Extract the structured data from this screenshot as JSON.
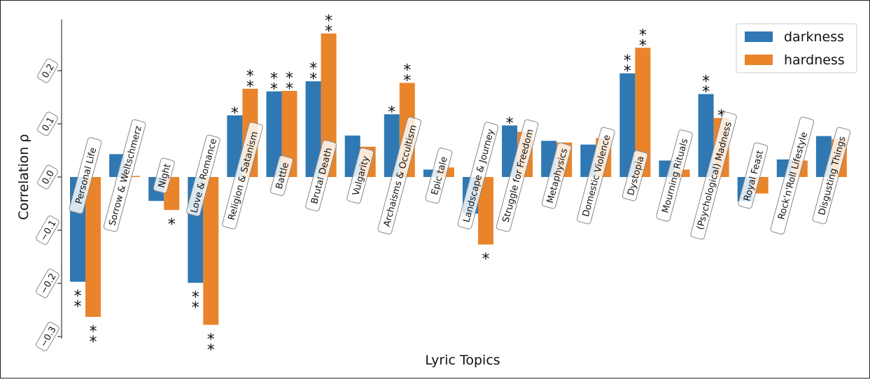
{
  "chart_data": {
    "type": "bar",
    "xlabel": "Lyric Topics",
    "ylabel": "Correlation ρ",
    "ylim": [
      -0.31,
      0.31
    ],
    "yticks": [
      0.2,
      0.1,
      0.0,
      -0.1,
      -0.2,
      -0.3
    ],
    "ytick_labels": [
      "0.2",
      "0.1",
      "0.0",
      "−0.1",
      "−0.2",
      "−0.3"
    ],
    "grid": false,
    "legend_position": "top-right",
    "categories": [
      "Personal Life",
      "Sorrow & Weltschmerz",
      "Night",
      "Love & Romance",
      "Religion & Satanism",
      "Battle",
      "Brutal Death",
      "Vulgarity",
      "Archaisms & Occultism",
      "Epic tale",
      "Landscape & Journey",
      "Struggle for Freedom",
      "Metaphysics",
      "Domestic Violence",
      "Dystopia",
      "Mourning Rituals",
      "(Psychological) Madness",
      "Royal Feast",
      "Rock'n'Roll Lifestyle",
      "Disgusting Things"
    ],
    "series": [
      {
        "name": "darkness",
        "color": "#2f78b3",
        "values": [
          -0.197,
          0.043,
          -0.045,
          -0.199,
          0.116,
          0.161,
          0.18,
          0.078,
          0.118,
          0.014,
          -0.069,
          0.097,
          0.068,
          0.061,
          0.195,
          0.031,
          0.156,
          -0.046,
          0.033,
          0.077
        ],
        "significance": [
          "**",
          "",
          "",
          "**",
          "*",
          "**",
          "**",
          "",
          "*",
          "",
          "",
          "*",
          "",
          "",
          "**",
          "",
          "**",
          "",
          "",
          ""
        ]
      },
      {
        "name": "hardness",
        "color": "#e9842b",
        "values": [
          -0.263,
          0.002,
          -0.062,
          -0.278,
          0.166,
          0.162,
          0.27,
          0.057,
          0.177,
          0.018,
          -0.127,
          0.085,
          0.065,
          0.073,
          0.243,
          0.014,
          0.111,
          -0.031,
          0.031,
          0.071
        ],
        "significance": [
          "**",
          "",
          "*",
          "**",
          "**",
          "**",
          "**",
          "",
          "**",
          "",
          "*",
          "",
          "",
          "",
          "**",
          "",
          "*",
          "",
          "",
          ""
        ]
      }
    ]
  }
}
